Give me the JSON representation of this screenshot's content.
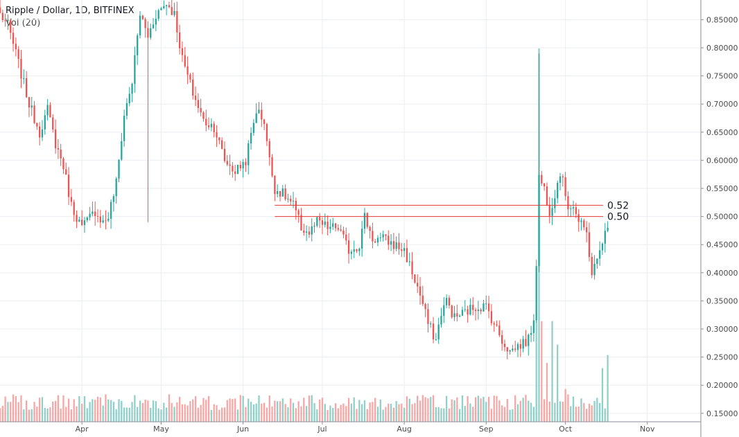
{
  "header": {
    "title": "Ripple / Dollar, 1D, BITFINEX",
    "indicator": "Vol (20)"
  },
  "chart_data": {
    "type": "candlestick",
    "symbol": "Ripple / Dollar",
    "interval": "1D",
    "exchange": "BITFINEX",
    "x_range": [
      "2018-03-01",
      "2018-11-21"
    ],
    "ylim": [
      0.135,
      0.885
    ],
    "y_ticks": [
      0.15,
      0.2,
      0.25,
      0.3,
      0.35,
      0.4,
      0.45,
      0.5,
      0.55,
      0.6,
      0.65,
      0.7,
      0.75,
      0.8,
      0.85
    ],
    "y_tick_labels": [
      "0.15000",
      "0.20000",
      "0.25000",
      "0.30000",
      "0.35000",
      "0.40000",
      "0.45000",
      "0.50000",
      "0.55000",
      "0.60000",
      "0.65000",
      "0.70000",
      "0.75000",
      "0.80000",
      "0.85000"
    ],
    "x_ticks": [
      {
        "date": "2018-04-01",
        "label": "Apr"
      },
      {
        "date": "2018-05-01",
        "label": "May"
      },
      {
        "date": "2018-06-01",
        "label": "Jun"
      },
      {
        "date": "2018-07-01",
        "label": "Jul"
      },
      {
        "date": "2018-08-01",
        "label": "Aug"
      },
      {
        "date": "2018-09-01",
        "label": "Sep"
      },
      {
        "date": "2018-10-01",
        "label": "Oct"
      },
      {
        "date": "2018-11-01",
        "label": "Nov"
      }
    ],
    "grid": true,
    "anchors": [
      [
        "2018-03-01",
        0.86
      ],
      [
        "2018-03-04",
        0.84
      ],
      [
        "2018-03-07",
        0.79
      ],
      [
        "2018-03-12",
        0.7
      ],
      [
        "2018-03-16",
        0.65
      ],
      [
        "2018-03-19",
        0.69
      ],
      [
        "2018-03-22",
        0.63
      ],
      [
        "2018-03-25",
        0.59
      ],
      [
        "2018-03-28",
        0.52
      ],
      [
        "2018-04-01",
        0.48
      ],
      [
        "2018-04-06",
        0.51
      ],
      [
        "2018-04-09",
        0.49
      ],
      [
        "2018-04-11",
        0.5
      ],
      [
        "2018-04-14",
        0.56
      ],
      [
        "2018-04-17",
        0.68
      ],
      [
        "2018-04-20",
        0.74
      ],
      [
        "2018-04-23",
        0.86
      ],
      [
        "2018-04-26",
        0.82
      ],
      [
        "2018-04-29",
        0.86
      ],
      [
        "2018-05-03",
        0.88
      ],
      [
        "2018-05-06",
        0.86
      ],
      [
        "2018-05-09",
        0.78
      ],
      [
        "2018-05-13",
        0.72
      ],
      [
        "2018-05-17",
        0.67
      ],
      [
        "2018-05-21",
        0.66
      ],
      [
        "2018-05-25",
        0.6
      ],
      [
        "2018-05-29",
        0.58
      ],
      [
        "2018-06-02",
        0.6
      ],
      [
        "2018-06-06",
        0.69
      ],
      [
        "2018-06-09",
        0.67
      ],
      [
        "2018-06-11",
        0.6
      ],
      [
        "2018-06-13",
        0.55
      ],
      [
        "2018-06-16",
        0.54
      ],
      [
        "2018-06-20",
        0.52
      ],
      [
        "2018-06-23",
        0.48
      ],
      [
        "2018-06-26",
        0.47
      ],
      [
        "2018-06-29",
        0.49
      ],
      [
        "2018-07-03",
        0.48
      ],
      [
        "2018-07-07",
        0.48
      ],
      [
        "2018-07-11",
        0.44
      ],
      [
        "2018-07-15",
        0.45
      ],
      [
        "2018-07-17",
        0.5
      ],
      [
        "2018-07-20",
        0.46
      ],
      [
        "2018-07-24",
        0.46
      ],
      [
        "2018-07-28",
        0.45
      ],
      [
        "2018-08-01",
        0.44
      ],
      [
        "2018-08-04",
        0.4
      ],
      [
        "2018-08-07",
        0.36
      ],
      [
        "2018-08-10",
        0.31
      ],
      [
        "2018-08-13",
        0.28
      ],
      [
        "2018-08-15",
        0.33
      ],
      [
        "2018-08-17",
        0.35
      ],
      [
        "2018-08-20",
        0.32
      ],
      [
        "2018-08-24",
        0.33
      ],
      [
        "2018-08-28",
        0.34
      ],
      [
        "2018-09-01",
        0.34
      ],
      [
        "2018-09-05",
        0.3
      ],
      [
        "2018-09-07",
        0.28
      ],
      [
        "2018-09-10",
        0.26
      ],
      [
        "2018-09-13",
        0.27
      ],
      [
        "2018-09-17",
        0.28
      ],
      [
        "2018-09-19",
        0.32
      ],
      [
        "2018-09-20",
        0.42
      ],
      [
        "2018-09-21",
        0.57
      ],
      [
        "2018-09-23",
        0.55
      ],
      [
        "2018-09-25",
        0.51
      ],
      [
        "2018-09-27",
        0.54
      ],
      [
        "2018-09-29",
        0.58
      ],
      [
        "2018-10-02",
        0.52
      ],
      [
        "2018-10-04",
        0.52
      ],
      [
        "2018-10-06",
        0.49
      ],
      [
        "2018-10-09",
        0.47
      ],
      [
        "2018-10-11",
        0.4
      ],
      [
        "2018-10-13",
        0.42
      ],
      [
        "2018-10-15",
        0.46
      ],
      [
        "2018-10-17",
        0.48
      ]
    ],
    "volume": {
      "y_share": 0.08,
      "spike": {
        "date": "2018-09-21",
        "level": 1.0
      },
      "high_days": [
        [
          "2018-09-20",
          0.38
        ],
        [
          "2018-09-22",
          0.38
        ],
        [
          "2018-09-24",
          0.22
        ],
        [
          "2018-09-26",
          0.38
        ],
        [
          "2018-09-28",
          0.29
        ],
        [
          "2018-10-01",
          0.12
        ],
        [
          "2018-10-15",
          0.2
        ],
        [
          "2018-10-17",
          0.25
        ]
      ]
    },
    "hlines": [
      {
        "value": 0.52,
        "label": "0.52",
        "start": "2018-06-13"
      },
      {
        "value": 0.5,
        "label": "0.50",
        "start": "2018-06-13"
      }
    ],
    "colors": {
      "up": "#26a69a",
      "down": "#ef5350",
      "up_vol": "#8fd0c8",
      "down_vol": "#f6a7a5",
      "hline": "#e53935",
      "grid": "#ebedf0",
      "axis_text": "#4a4a4a"
    }
  }
}
